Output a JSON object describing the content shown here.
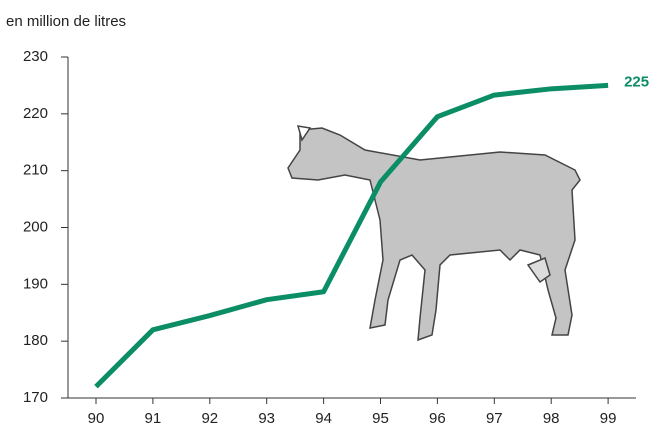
{
  "chart_data": {
    "type": "line",
    "y_label": "en million de litres",
    "categories": [
      "90",
      "91",
      "92",
      "93",
      "94",
      "95",
      "96",
      "97",
      "98",
      "99"
    ],
    "values": [
      172,
      182,
      184.5,
      187.3,
      188.7,
      208,
      219.5,
      223.3,
      224.4,
      225
    ],
    "color": "#0b8d66",
    "ylim": [
      170,
      230
    ],
    "yticks": [
      170,
      180,
      190,
      200,
      210,
      220,
      230
    ]
  }
}
